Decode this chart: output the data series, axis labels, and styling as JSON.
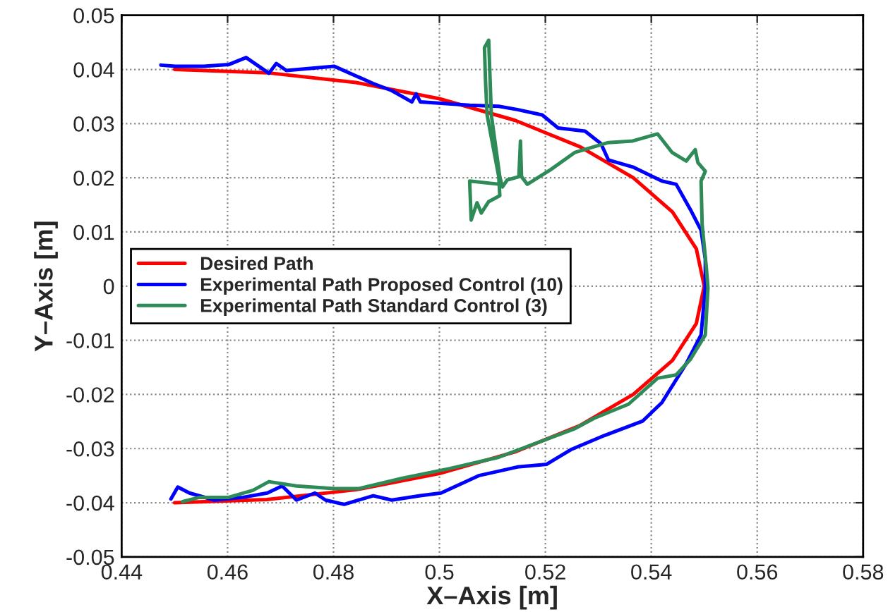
{
  "chart_data": {
    "type": "line",
    "xlabel": "X–Axis [m]",
    "ylabel": "Y–Axis [m]",
    "xlim": [
      0.44,
      0.58
    ],
    "xticks": [
      0.44,
      0.46,
      0.48,
      0.5,
      0.52,
      0.54,
      0.56,
      0.58
    ],
    "ylim": [
      -0.05,
      0.05
    ],
    "yticks": [
      -0.05,
      -0.04,
      -0.03,
      -0.02,
      -0.01,
      0,
      0.01,
      0.02,
      0.03,
      0.04,
      0.05
    ],
    "grid": true,
    "legend": "center left",
    "line_style": "solid",
    "marker": "none",
    "series": [
      {
        "name": "Desired Path",
        "color": "#ff0000",
        "x": [
          0.45,
          0.4674,
          0.4842,
          0.5,
          0.5143,
          0.5266,
          0.5366,
          0.544,
          0.5485,
          0.55,
          0.5485,
          0.544,
          0.5366,
          0.5266,
          0.5143,
          0.5,
          0.4842,
          0.4674,
          0.45
        ],
        "values": [
          0.04,
          0.0394,
          0.0376,
          0.0346,
          0.0306,
          0.0257,
          0.02,
          0.0137,
          0.0069,
          0,
          -0.0069,
          -0.0137,
          -0.02,
          -0.0257,
          -0.0306,
          -0.0346,
          -0.0376,
          -0.0394,
          -0.04
        ]
      },
      {
        "name": "Experimental Path Proposed Control (10)",
        "color": "#0000ff",
        "x": [
          0.4474,
          0.4501,
          0.4555,
          0.4602,
          0.4635,
          0.4678,
          0.4692,
          0.4711,
          0.4801,
          0.4875,
          0.491,
          0.4948,
          0.4956,
          0.4964,
          0.5057,
          0.5112,
          0.5147,
          0.5194,
          0.5224,
          0.5275,
          0.5305,
          0.5319,
          0.5365,
          0.542,
          0.5447,
          0.5474,
          0.5494,
          0.5502,
          0.5502,
          0.5494,
          0.5466,
          0.542,
          0.5384,
          0.5311,
          0.5248,
          0.5202,
          0.5147,
          0.5074,
          0.5003,
          0.4964,
          0.491,
          0.4875,
          0.482,
          0.4785,
          0.4765,
          0.473,
          0.4703,
          0.4675,
          0.4629,
          0.4575,
          0.4528,
          0.4506,
          0.4493
        ],
        "values": [
          0.0408,
          0.0406,
          0.0406,
          0.0409,
          0.0422,
          0.0393,
          0.0411,
          0.0398,
          0.0406,
          0.0374,
          0.0361,
          0.034,
          0.0355,
          0.034,
          0.0334,
          0.0332,
          0.0326,
          0.0316,
          0.0292,
          0.0286,
          0.0263,
          0.0233,
          0.022,
          0.0194,
          0.0188,
          0.0141,
          0.0103,
          0.005,
          -0.0003,
          -0.009,
          -0.0143,
          -0.0215,
          -0.0249,
          -0.0276,
          -0.0302,
          -0.0329,
          -0.0334,
          -0.035,
          -0.0382,
          -0.0387,
          -0.0395,
          -0.0387,
          -0.0403,
          -0.0395,
          -0.0382,
          -0.0395,
          -0.0369,
          -0.0382,
          -0.039,
          -0.0395,
          -0.0382,
          -0.0371,
          -0.0393
        ]
      },
      {
        "name": "Experimental Path Standard Control (3)",
        "color": "#2e8b57",
        "x": [
          0.4515,
          0.4547,
          0.4602,
          0.4648,
          0.4678,
          0.473,
          0.4801,
          0.4847,
          0.4929,
          0.5019,
          0.5112,
          0.5256,
          0.5292,
          0.5357,
          0.5412,
          0.5447,
          0.5474,
          0.5502,
          0.5507,
          0.5504,
          0.5496,
          0.5494,
          0.5502,
          0.5488,
          0.5483,
          0.5466,
          0.5439,
          0.5412,
          0.5365,
          0.5319,
          0.5256,
          0.521,
          0.5166,
          0.5155,
          0.5153,
          0.515,
          0.5128,
          0.5119,
          0.5114,
          0.5098,
          0.5093,
          0.5085,
          0.5087,
          0.509,
          0.5112,
          0.5114,
          0.5093,
          0.5079,
          0.5071,
          0.506,
          0.5057,
          0.5114
        ],
        "values": [
          -0.0398,
          -0.039,
          -0.039,
          -0.0377,
          -0.0361,
          -0.0369,
          -0.0374,
          -0.0374,
          -0.0355,
          -0.0337,
          -0.0316,
          -0.0263,
          -0.0244,
          -0.0218,
          -0.017,
          -0.0164,
          -0.0135,
          -0.009,
          -0.0003,
          0.0034,
          0.0114,
          0.0194,
          0.0212,
          0.0228,
          0.0252,
          0.0231,
          0.0247,
          0.0281,
          0.0268,
          0.0265,
          0.0247,
          0.0215,
          0.0188,
          0.0202,
          0.0268,
          0.0202,
          0.0196,
          0.0183,
          0.0202,
          0.0316,
          0.0454,
          0.044,
          0.0379,
          0.0316,
          0.0202,
          0.0167,
          0.0156,
          0.0135,
          0.0154,
          0.0122,
          0.0194,
          0.0188
        ]
      }
    ]
  }
}
